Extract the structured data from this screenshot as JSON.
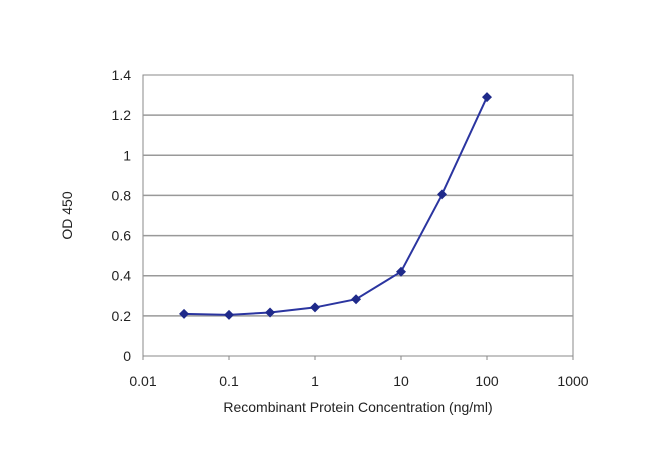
{
  "chart_data": {
    "type": "line",
    "title": "",
    "xlabel": "Recombinant Protein Concentration (ng/ml)",
    "ylabel": "OD 450",
    "xscale": "log",
    "xlim": [
      0.01,
      1000
    ],
    "ylim": [
      0,
      1.4
    ],
    "xticks": [
      "0.01",
      "0.1",
      "1",
      "10",
      "100",
      "1000"
    ],
    "yticks": [
      "0",
      "0.2",
      "0.4",
      "0.6",
      "0.8",
      "1",
      "1.2",
      "1.4"
    ],
    "grid": "horizontal",
    "legend": "none",
    "series": [
      {
        "color": "#2b35a0",
        "marker": "diamond",
        "x": [
          0.03,
          0.1,
          0.3,
          1,
          3,
          10,
          30,
          100
        ],
        "y": [
          0.21,
          0.205,
          0.217,
          0.242,
          0.283,
          0.42,
          0.805,
          1.29
        ]
      }
    ]
  }
}
